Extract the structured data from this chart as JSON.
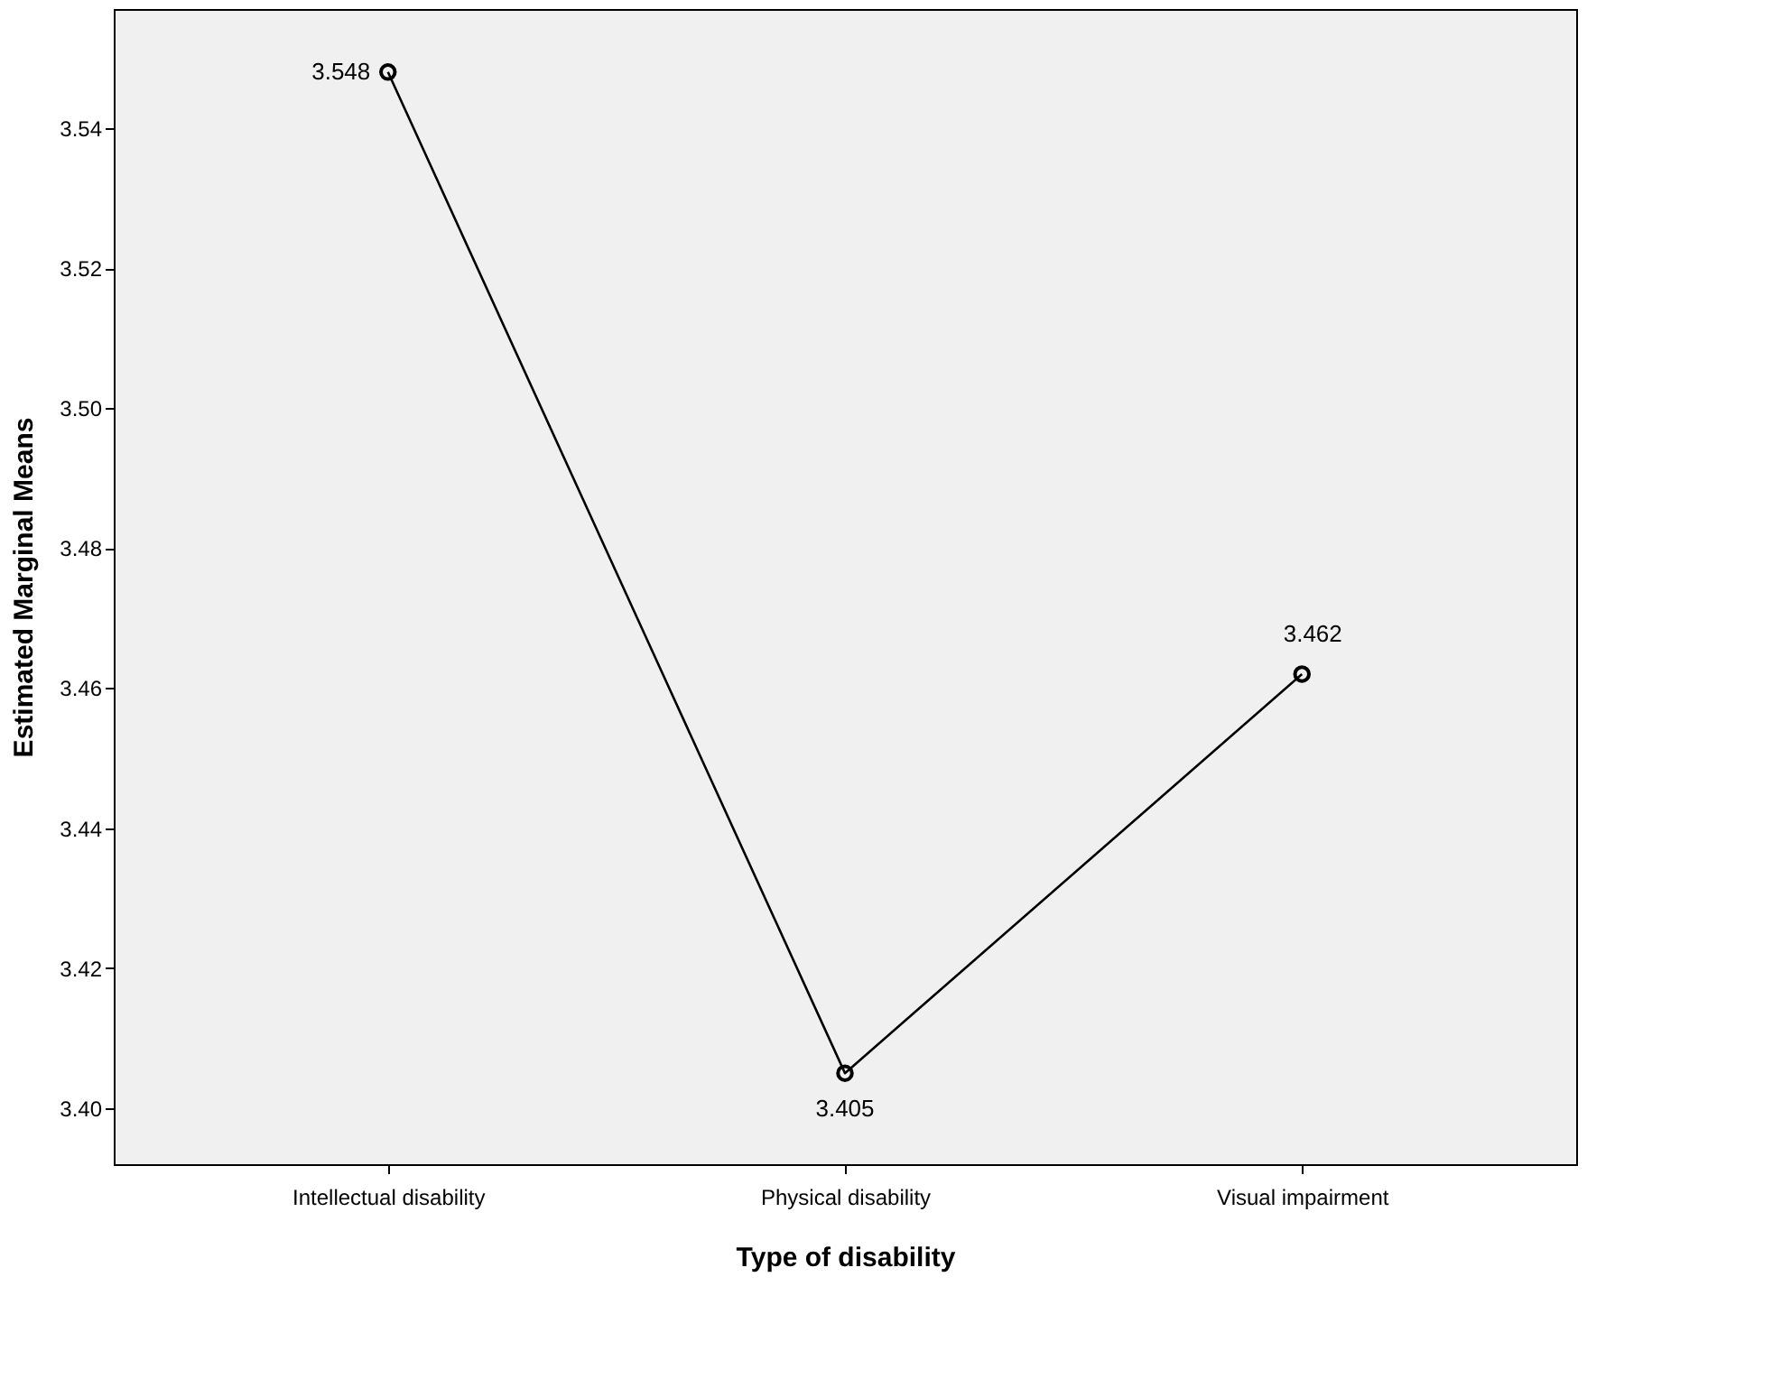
{
  "chart_data": {
    "type": "line",
    "xlabel": "Type of disability",
    "ylabel": "Estimated Marginal Means",
    "categories": [
      "Intellectual disability",
      "Physical disability",
      "Visual impairment"
    ],
    "series": [
      {
        "color": "#000000",
        "values": [
          3.548,
          3.405,
          3.462
        ]
      }
    ],
    "ylim": [
      3.392,
      3.557
    ],
    "yticks": [
      {
        "value": 3.4,
        "label": "3.40"
      },
      {
        "value": 3.42,
        "label": "3.42"
      },
      {
        "value": 3.44,
        "label": "3.44"
      },
      {
        "value": 3.46,
        "label": "3.46"
      },
      {
        "value": 3.48,
        "label": "3.48"
      },
      {
        "value": 3.5,
        "label": "3.50"
      },
      {
        "value": 3.52,
        "label": "3.52"
      },
      {
        "value": 3.54,
        "label": "3.54"
      }
    ],
    "marker": "circle",
    "line_style": "solid",
    "data_labels": true,
    "grid": false
  }
}
